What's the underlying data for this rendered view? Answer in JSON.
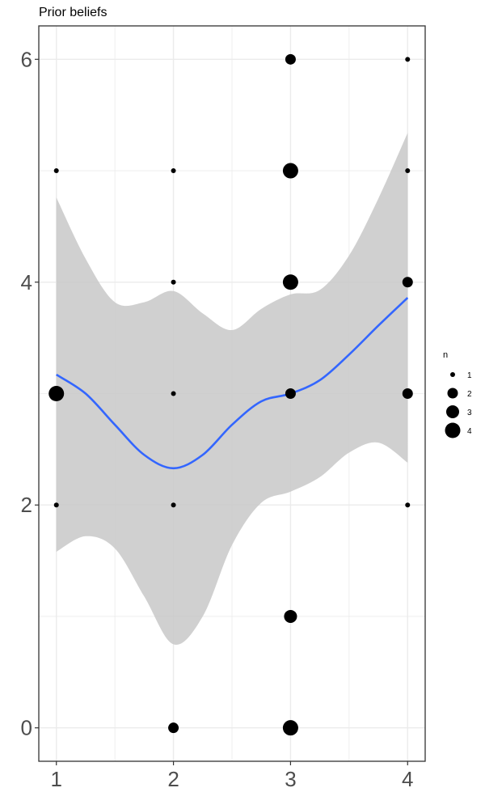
{
  "chart_data": {
    "type": "scatter",
    "title": "Prior beliefs",
    "xlabel": "",
    "ylabel": "",
    "xlim": [
      0.85,
      4.15
    ],
    "ylim": [
      -0.3,
      6.3
    ],
    "x_ticks": [
      1,
      2,
      3,
      4
    ],
    "y_ticks": [
      0,
      2,
      4,
      6
    ],
    "x_minor": [
      1.5,
      2.5,
      3.5
    ],
    "y_minor": [
      1,
      3,
      5
    ],
    "grid": true,
    "points": [
      {
        "x": 1,
        "y": 5,
        "n": 1
      },
      {
        "x": 1,
        "y": 3,
        "n": 4
      },
      {
        "x": 1,
        "y": 2,
        "n": 1
      },
      {
        "x": 2,
        "y": 5,
        "n": 1
      },
      {
        "x": 2,
        "y": 4,
        "n": 1
      },
      {
        "x": 2,
        "y": 3,
        "n": 1
      },
      {
        "x": 2,
        "y": 2,
        "n": 1
      },
      {
        "x": 2,
        "y": 0,
        "n": 2
      },
      {
        "x": 3,
        "y": 6,
        "n": 2
      },
      {
        "x": 3,
        "y": 5,
        "n": 4
      },
      {
        "x": 3,
        "y": 4,
        "n": 4
      },
      {
        "x": 3,
        "y": 3,
        "n": 2
      },
      {
        "x": 3,
        "y": 1,
        "n": 3
      },
      {
        "x": 3,
        "y": 0,
        "n": 4
      },
      {
        "x": 4,
        "y": 6,
        "n": 1
      },
      {
        "x": 4,
        "y": 5,
        "n": 1
      },
      {
        "x": 4,
        "y": 4,
        "n": 2
      },
      {
        "x": 4,
        "y": 3,
        "n": 2
      },
      {
        "x": 4,
        "y": 2,
        "n": 1
      }
    ],
    "smooth": {
      "x": [
        1.0,
        1.25,
        1.5,
        1.75,
        2.0,
        2.25,
        2.5,
        2.75,
        3.0,
        3.25,
        3.5,
        3.75,
        4.0
      ],
      "y": [
        3.17,
        3.0,
        2.72,
        2.45,
        2.33,
        2.45,
        2.72,
        2.93,
        3.0,
        3.12,
        3.35,
        3.61,
        3.86
      ],
      "lower": [
        1.58,
        1.72,
        1.61,
        1.18,
        0.75,
        1.0,
        1.64,
        2.02,
        2.12,
        2.25,
        2.47,
        2.56,
        2.38
      ],
      "upper": [
        4.76,
        4.21,
        3.82,
        3.82,
        3.92,
        3.72,
        3.57,
        3.76,
        3.89,
        3.93,
        4.24,
        4.75,
        5.34
      ]
    },
    "colors": {
      "line": "#3366ff",
      "band": "#c8c8c8",
      "points": "#000000",
      "grid": "#ebebeb",
      "axis": "#333333"
    },
    "legend": {
      "title": "n",
      "placement": "right",
      "entries": [
        1,
        2,
        3,
        4
      ]
    }
  }
}
